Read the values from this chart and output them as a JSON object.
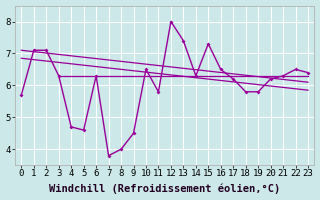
{
  "x": [
    0,
    1,
    2,
    3,
    4,
    5,
    6,
    7,
    8,
    9,
    10,
    11,
    12,
    13,
    14,
    15,
    16,
    17,
    18,
    19,
    20,
    21,
    22,
    23
  ],
  "y_main": [
    5.7,
    7.1,
    7.1,
    6.3,
    4.7,
    4.6,
    6.3,
    3.8,
    4.0,
    4.5,
    6.5,
    5.8,
    8.0,
    7.4,
    6.3,
    7.3,
    6.5,
    6.2,
    5.8,
    5.8,
    6.2,
    6.3,
    6.5,
    6.4
  ],
  "trend_x": [
    0,
    23
  ],
  "trend_y1_start": 7.1,
  "trend_y1_end": 6.1,
  "trend_y2_start": 6.85,
  "trend_y2_end": 5.85,
  "horiz_y": 6.3,
  "line_color": "#990099",
  "bg_color": "#cce8e8",
  "grid_color": "#ffffff",
  "xlabel": "Windchill (Refroidissement éolien,°C)",
  "ylim": [
    3.5,
    8.5
  ],
  "xlim": [
    -0.5,
    23.5
  ],
  "tick_fontsize": 6.5,
  "xlabel_fontsize": 7.5
}
